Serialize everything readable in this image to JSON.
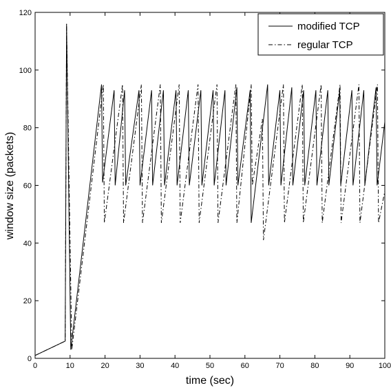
{
  "chart_data": {
    "type": "line",
    "title": "",
    "xlabel": "time (sec)",
    "ylabel": "window size (packets)",
    "xlim": [
      0,
      100
    ],
    "ylim": [
      0,
      120
    ],
    "xticks": [
      0,
      10,
      20,
      30,
      40,
      50,
      60,
      70,
      80,
      90,
      100
    ],
    "yticks": [
      0,
      20,
      40,
      60,
      80,
      100,
      120
    ],
    "grid": false,
    "legend_position": "top-right",
    "series": [
      {
        "name": "modified TCP",
        "style": "solid",
        "color": "#000000",
        "points": [
          [
            0,
            1
          ],
          [
            8.6,
            6
          ],
          [
            9,
            116
          ],
          [
            10.2,
            3
          ],
          [
            19,
            95
          ],
          [
            19.3,
            61
          ],
          [
            22.6,
            93
          ],
          [
            22.9,
            60
          ],
          [
            25.6,
            93
          ],
          [
            25.9,
            60
          ],
          [
            29.7,
            93
          ],
          [
            30,
            60
          ],
          [
            33.3,
            93
          ],
          [
            33.6,
            60
          ],
          [
            36.7,
            93
          ],
          [
            37,
            60
          ],
          [
            40.3,
            93
          ],
          [
            40.6,
            60
          ],
          [
            43.8,
            93
          ],
          [
            44.1,
            60
          ],
          [
            47.4,
            93
          ],
          [
            47.7,
            60
          ],
          [
            50.9,
            93
          ],
          [
            51.2,
            60
          ],
          [
            54.3,
            93
          ],
          [
            54.6,
            60
          ],
          [
            57.7,
            94
          ],
          [
            58,
            60
          ],
          [
            61.5,
            93
          ],
          [
            61.8,
            47
          ],
          [
            66.5,
            95
          ],
          [
            66.8,
            60
          ],
          [
            70,
            93
          ],
          [
            70.3,
            60
          ],
          [
            73.4,
            94
          ],
          [
            73.7,
            60
          ],
          [
            76.8,
            93
          ],
          [
            77.1,
            60
          ],
          [
            80.3,
            93
          ],
          [
            80.6,
            60
          ],
          [
            83.7,
            93
          ],
          [
            84,
            60
          ],
          [
            87.1,
            93
          ],
          [
            87.4,
            60
          ],
          [
            90.6,
            93
          ],
          [
            90.9,
            60
          ],
          [
            94,
            93
          ],
          [
            94.3,
            60
          ],
          [
            97.5,
            94
          ],
          [
            97.8,
            60
          ],
          [
            100,
            82
          ]
        ]
      },
      {
        "name": "regular TCP",
        "style": "dashdot",
        "color": "#000000",
        "points": [
          [
            0,
            1
          ],
          [
            8.6,
            6
          ],
          [
            9,
            116
          ],
          [
            10.5,
            3
          ],
          [
            19.5,
            95
          ],
          [
            19.8,
            47
          ],
          [
            25,
            95
          ],
          [
            25.3,
            47
          ],
          [
            30.4,
            95
          ],
          [
            30.7,
            47
          ],
          [
            35.8,
            95
          ],
          [
            36.1,
            47
          ],
          [
            41.2,
            95
          ],
          [
            41.5,
            47
          ],
          [
            46.6,
            95
          ],
          [
            46.9,
            47
          ],
          [
            52,
            95
          ],
          [
            52.3,
            47
          ],
          [
            57.4,
            95
          ],
          [
            57.7,
            47
          ],
          [
            61.8,
            95
          ],
          [
            62.1,
            60
          ],
          [
            65,
            83
          ],
          [
            65.3,
            41
          ],
          [
            71,
            95
          ],
          [
            71.3,
            47
          ],
          [
            76.4,
            95
          ],
          [
            76.7,
            47
          ],
          [
            81.8,
            95
          ],
          [
            82.1,
            47
          ],
          [
            87.2,
            95
          ],
          [
            87.5,
            47
          ],
          [
            92.6,
            95
          ],
          [
            92.9,
            47
          ],
          [
            97.9,
            95
          ],
          [
            98.2,
            47
          ],
          [
            100,
            58
          ]
        ]
      }
    ]
  }
}
